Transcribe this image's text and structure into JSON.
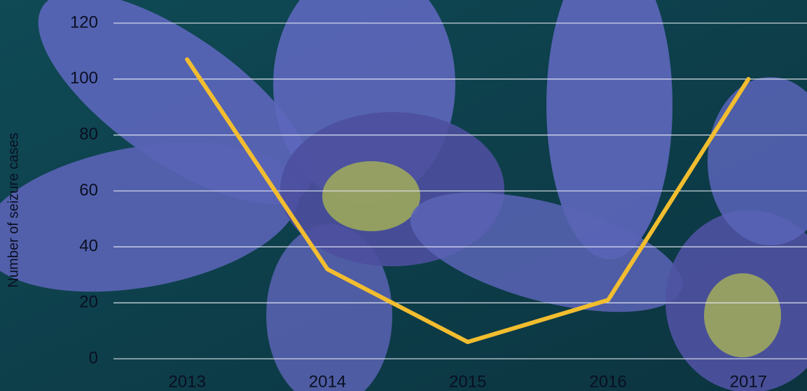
{
  "chart_data": {
    "type": "line",
    "y_label": "Number of seizure cases",
    "categories": [
      "2013",
      "2014",
      "2015",
      "2016",
      "2017"
    ],
    "values": [
      107,
      32,
      6,
      21,
      100
    ],
    "color": "#f2bd2f",
    "ylim": [
      0,
      120
    ],
    "yticks": [
      0,
      20,
      40,
      60,
      80,
      100,
      120
    ],
    "grid": true
  }
}
